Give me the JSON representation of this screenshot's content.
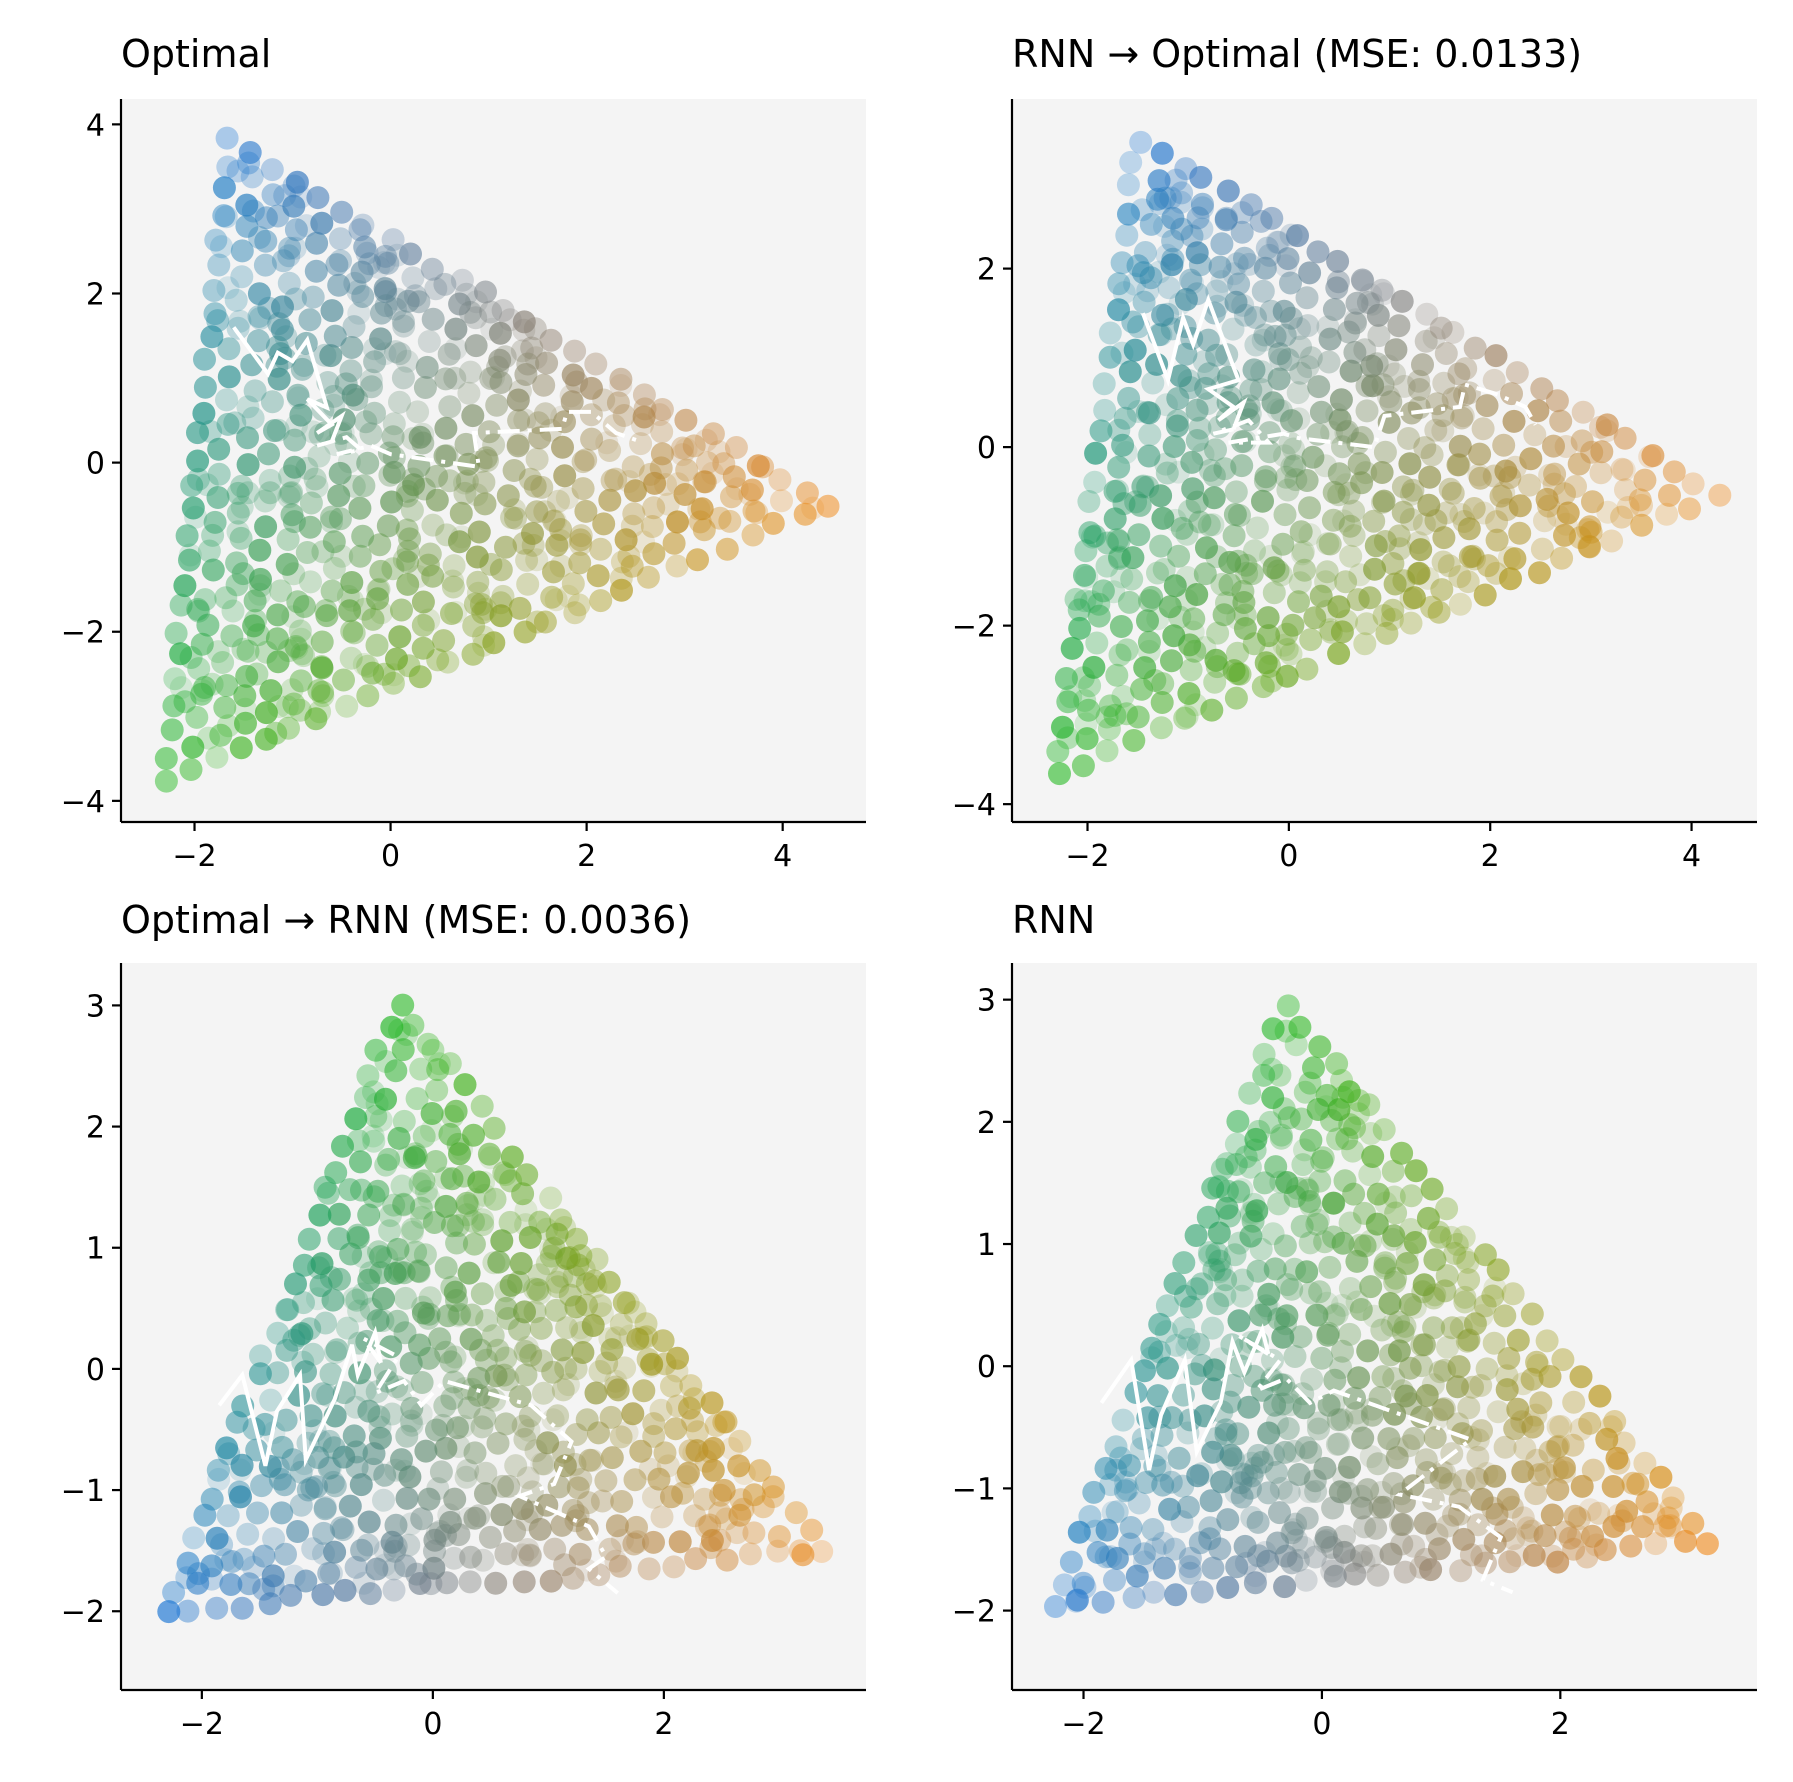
{
  "figure": {
    "colors": {
      "blue": "#1f77d4",
      "green": "#22b81e",
      "orange": "#f08a1a",
      "background": "#f4f4f4",
      "trajectory": "#ffffff"
    }
  },
  "chart_data": [
    {
      "type": "scatter",
      "title": "Optimal",
      "shape": "triangle",
      "vertices": {
        "blue": [
          -1.65,
          3.8
        ],
        "green": [
          -2.3,
          -3.75
        ],
        "orange": [
          4.45,
          -0.5
        ]
      },
      "xlim": [
        -2.75,
        4.85
      ],
      "ylim": [
        -4.25,
        4.3
      ],
      "xticks": [
        -2,
        0,
        2,
        4
      ],
      "yticks": [
        -4,
        -2,
        0,
        2,
        4
      ],
      "trajectory_solid": [
        [
          -1.6,
          1.6
        ],
        [
          -1.25,
          1.05
        ],
        [
          -1.15,
          1.3
        ],
        [
          -1.0,
          1.2
        ],
        [
          -0.85,
          1.45
        ],
        [
          -0.65,
          0.65
        ],
        [
          -0.85,
          0.75
        ],
        [
          -0.6,
          0.45
        ],
        [
          -0.75,
          0.35
        ],
        [
          -0.5,
          0.55
        ],
        [
          -0.6,
          0.25
        ]
      ],
      "trajectory_dashdot": [
        [
          -0.6,
          0.25
        ],
        [
          -0.75,
          0.2
        ],
        [
          -0.45,
          0.3
        ],
        [
          -0.3,
          0.15
        ],
        [
          -0.55,
          0.1
        ],
        [
          -0.2,
          0.2
        ],
        [
          0.0,
          0.1
        ],
        [
          0.9,
          -0.05
        ],
        [
          0.85,
          0.35
        ],
        [
          1.75,
          0.4
        ],
        [
          1.8,
          0.6
        ],
        [
          2.05,
          0.6
        ],
        [
          2.3,
          0.35
        ],
        [
          2.55,
          0.25
        ]
      ]
    },
    {
      "type": "scatter",
      "title": "RNN → Optimal (MSE: 0.0133)",
      "shape": "triangle",
      "vertices": {
        "blue": [
          -1.5,
          3.45
        ],
        "green": [
          -2.3,
          -3.65
        ],
        "orange": [
          4.25,
          -0.55
        ]
      },
      "xlim": [
        -2.75,
        4.65
      ],
      "ylim": [
        -4.2,
        3.9
      ],
      "xticks": [
        -2,
        0,
        2,
        4
      ],
      "yticks": [
        -4,
        -2,
        0,
        2
      ],
      "trajectory_solid": [
        [
          -1.45,
          1.5
        ],
        [
          -1.2,
          0.75
        ],
        [
          -1.05,
          1.45
        ],
        [
          -0.95,
          1.15
        ],
        [
          -0.8,
          1.65
        ],
        [
          -0.5,
          0.75
        ],
        [
          -0.8,
          0.65
        ],
        [
          -0.55,
          0.45
        ],
        [
          -0.7,
          0.3
        ],
        [
          -0.45,
          0.5
        ],
        [
          -0.55,
          0.2
        ]
      ],
      "trajectory_dashdot": [
        [
          -0.55,
          0.2
        ],
        [
          -0.75,
          0.15
        ],
        [
          -0.4,
          0.3
        ],
        [
          -0.2,
          0.05
        ],
        [
          -0.6,
          0.05
        ],
        [
          -0.05,
          0.15
        ],
        [
          0.1,
          0.1
        ],
        [
          0.85,
          0.0
        ],
        [
          0.95,
          0.35
        ],
        [
          1.7,
          0.45
        ],
        [
          1.75,
          0.7
        ],
        [
          2.05,
          0.6
        ],
        [
          2.35,
          0.45
        ],
        [
          2.45,
          0.25
        ]
      ]
    },
    {
      "type": "scatter",
      "title": "Optimal → RNN (MSE: 0.0036)",
      "shape": "fan",
      "vertices": {
        "green": [
          -0.3,
          3.0
        ],
        "blue": [
          -2.3,
          -2.0
        ],
        "orange": [
          3.4,
          -1.5
        ]
      },
      "xlim": [
        -2.7,
        3.75
      ],
      "ylim": [
        -2.65,
        3.35
      ],
      "xticks": [
        -2,
        0,
        2
      ],
      "yticks": [
        -2,
        -1,
        0,
        1,
        2,
        3
      ],
      "trajectory_solid": [
        [
          -1.85,
          -0.3
        ],
        [
          -1.65,
          -0.05
        ],
        [
          -1.45,
          -0.8
        ],
        [
          -1.35,
          -0.35
        ],
        [
          -1.15,
          -0.05
        ],
        [
          -1.1,
          -0.75
        ],
        [
          -0.85,
          -0.25
        ],
        [
          -0.7,
          0.2
        ],
        [
          -0.65,
          -0.05
        ],
        [
          -0.5,
          0.3
        ],
        [
          -0.45,
          0.05
        ]
      ],
      "trajectory_dashdot": [
        [
          -0.45,
          0.05
        ],
        [
          -0.6,
          0.25
        ],
        [
          -0.3,
          0.1
        ],
        [
          -0.5,
          -0.2
        ],
        [
          -0.25,
          -0.1
        ],
        [
          -0.1,
          -0.3
        ],
        [
          0.1,
          -0.1
        ],
        [
          0.85,
          -0.3
        ],
        [
          1.2,
          -0.6
        ],
        [
          1.05,
          -0.95
        ],
        [
          0.75,
          -1.05
        ],
        [
          1.35,
          -1.3
        ],
        [
          1.5,
          -1.55
        ],
        [
          1.35,
          -1.65
        ],
        [
          1.6,
          -1.85
        ]
      ]
    },
    {
      "type": "scatter",
      "title": "RNN",
      "shape": "fan",
      "vertices": {
        "green": [
          -0.3,
          2.95
        ],
        "blue": [
          -2.25,
          -1.95
        ],
        "orange": [
          3.25,
          -1.45
        ]
      },
      "xlim": [
        -2.6,
        3.65
      ],
      "ylim": [
        -2.65,
        3.3
      ],
      "xticks": [
        -2,
        0,
        2
      ],
      "yticks": [
        -2,
        -1,
        0,
        1,
        2,
        3
      ],
      "trajectory_solid": [
        [
          -1.85,
          -0.3
        ],
        [
          -1.6,
          0.05
        ],
        [
          -1.45,
          -0.85
        ],
        [
          -1.35,
          -0.4
        ],
        [
          -1.15,
          0.05
        ],
        [
          -1.05,
          -0.7
        ],
        [
          -0.85,
          -0.3
        ],
        [
          -0.75,
          0.2
        ],
        [
          -0.65,
          -0.05
        ],
        [
          -0.5,
          0.3
        ],
        [
          -0.45,
          0.1
        ]
      ],
      "trajectory_dashdot": [
        [
          -0.45,
          0.1
        ],
        [
          -0.7,
          0.25
        ],
        [
          -0.35,
          0.05
        ],
        [
          -0.55,
          -0.2
        ],
        [
          -0.3,
          -0.1
        ],
        [
          -0.1,
          -0.3
        ],
        [
          0.1,
          -0.2
        ],
        [
          1.25,
          -0.6
        ],
        [
          0.65,
          -1.05
        ],
        [
          1.15,
          -1.15
        ],
        [
          1.5,
          -1.4
        ],
        [
          1.35,
          -1.75
        ],
        [
          1.6,
          -1.85
        ]
      ]
    }
  ]
}
